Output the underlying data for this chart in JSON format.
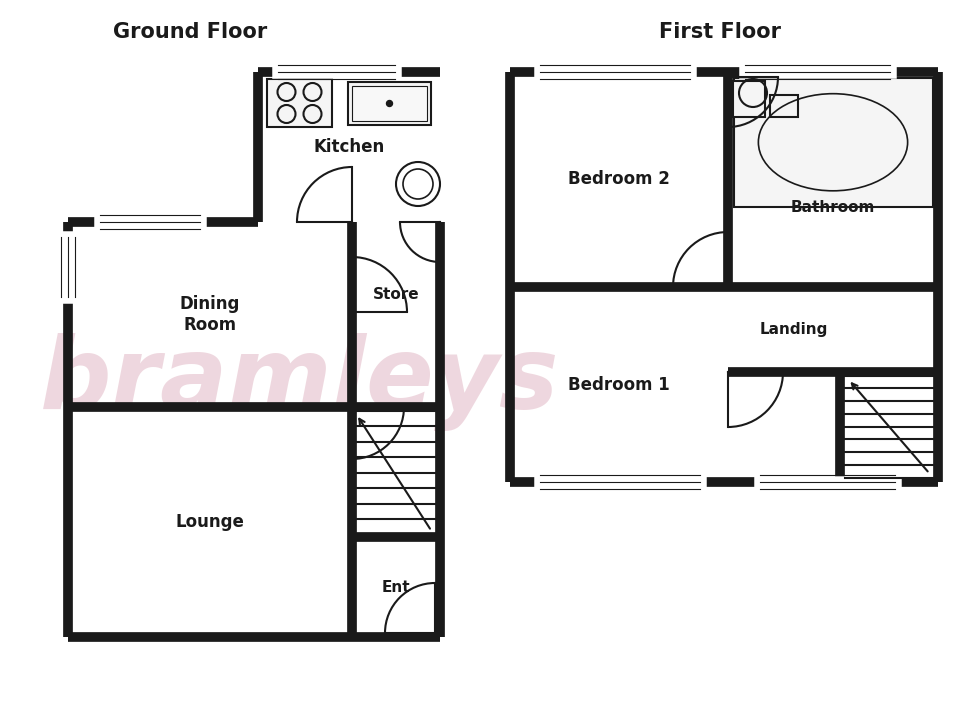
{
  "background_color": "#ffffff",
  "wall_color": "#1a1a1a",
  "room_fill": "#ffffff",
  "watermark_color": "#dba8b8",
  "watermark_text": "bramleys",
  "watermark_alpha": 0.45,
  "title_gf": "Ground Floor",
  "title_ff": "First Floor",
  "title_fontsize": 15,
  "label_fontsize": 12,
  "wall_lw": 7,
  "thin_lw": 1.5,
  "GF_L": 68,
  "GF_R": 440,
  "GF_B": 75,
  "GF_T": 490,
  "K_L": 258,
  "K_T": 640,
  "LDR_DIV": 305,
  "RC_L": 352,
  "ENT_T": 175,
  "FF_L": 510,
  "FF_R": 938,
  "FF_B": 230,
  "FF_T": 640,
  "FF_VD": 728,
  "FF_HD": 425,
  "FF_LAND_B": 340,
  "FF_STAIR_L": 840
}
